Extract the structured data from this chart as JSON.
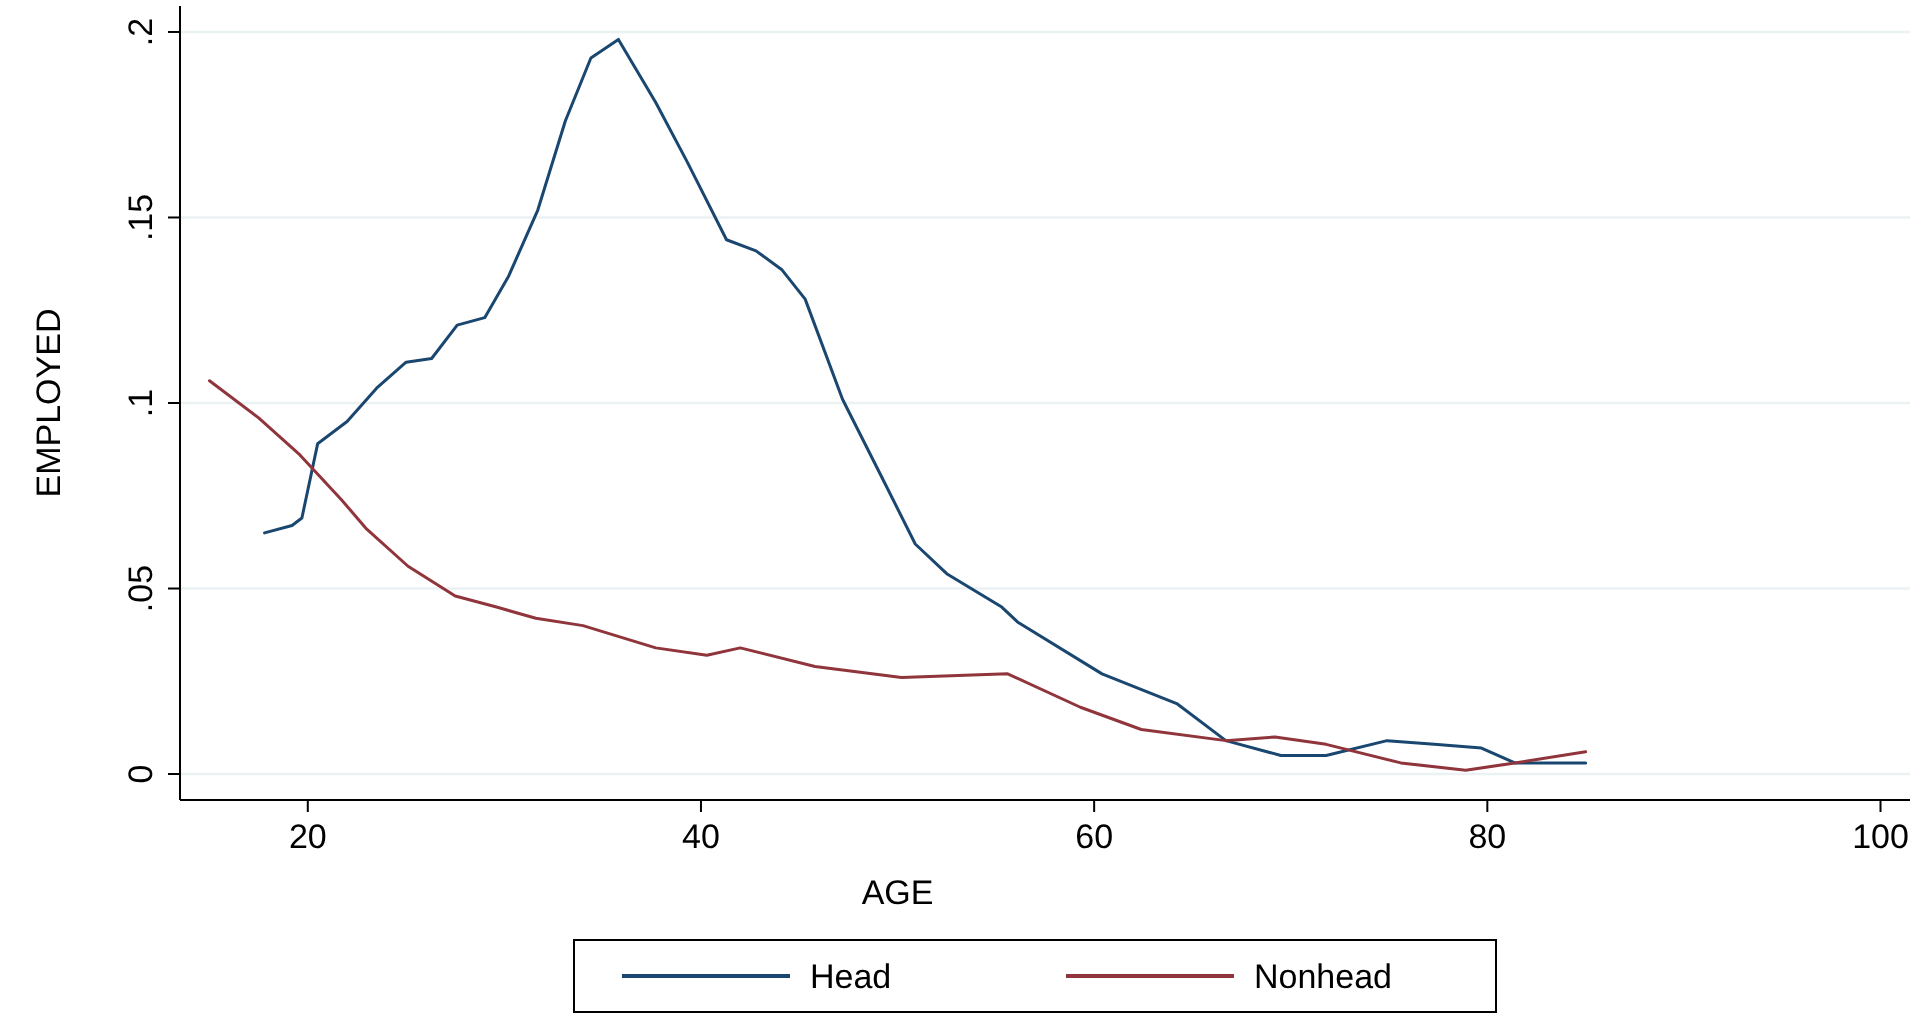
{
  "chart_data": {
    "type": "line",
    "xlabel": "AGE",
    "ylabel": "EMPLOYED",
    "xlim": [
      13.5,
      101.5
    ],
    "ylim": [
      -0.007,
      0.207
    ],
    "xticks": [
      20,
      40,
      60,
      80,
      100
    ],
    "yticks": [
      {
        "value": 0,
        "label": "0"
      },
      {
        "value": 0.05,
        "label": ".05"
      },
      {
        "value": 0.1,
        "label": ".1"
      },
      {
        "value": 0.15,
        "label": ".15"
      },
      {
        "value": 0.2,
        "label": ".2"
      }
    ],
    "grid": "y",
    "legend": "bottom",
    "line_style": "solid",
    "series": [
      {
        "name": "Head",
        "color": "#1a476f",
        "x": [
          17.8,
          19.2,
          19.7,
          20.5,
          22,
          23.5,
          25,
          26.3,
          27.6,
          29,
          30.2,
          31.7,
          33.1,
          34.4,
          35.8,
          37.7,
          39.3,
          41.3,
          42.8,
          44.1,
          45.3,
          47.2,
          49.2,
          50.9,
          52.5,
          55.3,
          56.1,
          60.4,
          64.2,
          66.7,
          69.5,
          71.8,
          74.9,
          77.3,
          79.7,
          81.4,
          85
        ],
        "values": [
          0.065,
          0.067,
          0.069,
          0.089,
          0.095,
          0.104,
          0.111,
          0.112,
          0.121,
          0.123,
          0.134,
          0.152,
          0.176,
          0.193,
          0.198,
          0.181,
          0.165,
          0.144,
          0.141,
          0.136,
          0.128,
          0.101,
          0.08,
          0.062,
          0.054,
          0.045,
          0.041,
          0.027,
          0.019,
          0.009,
          0.005,
          0.005,
          0.009,
          0.008,
          0.007,
          0.003,
          0.003
        ]
      },
      {
        "name": "Nonhead",
        "color": "#90353b",
        "x": [
          15,
          17.5,
          19.6,
          21.7,
          23,
          25.1,
          27.5,
          29.6,
          31.6,
          34,
          37.7,
          40.3,
          42,
          45.8,
          50.2,
          55.6,
          59.3,
          62.4,
          66.7,
          69.2,
          71.8,
          75.6,
          78.9,
          81.4,
          85
        ],
        "values": [
          0.106,
          0.096,
          0.086,
          0.074,
          0.066,
          0.056,
          0.048,
          0.045,
          0.042,
          0.04,
          0.034,
          0.032,
          0.034,
          0.029,
          0.026,
          0.027,
          0.018,
          0.012,
          0.009,
          0.01,
          0.008,
          0.003,
          0.001,
          0.003,
          0.006
        ]
      }
    ]
  }
}
